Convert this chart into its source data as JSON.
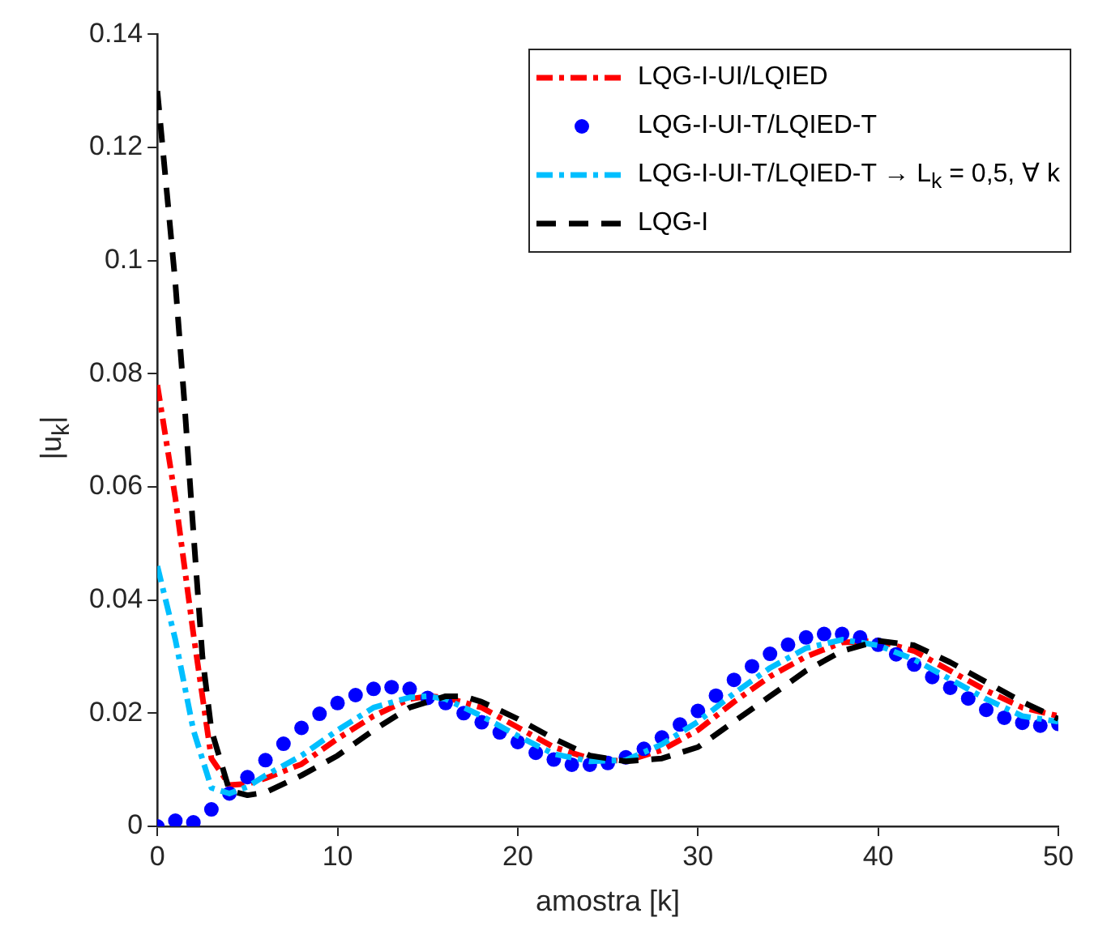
{
  "chart_data": {
    "type": "line",
    "xlabel": "amostra [k]",
    "ylabel": "|u$_{k}$|",
    "xlim": [
      0,
      50
    ],
    "xticks": [
      0,
      10,
      20,
      30,
      40,
      50
    ],
    "ylim": [
      0,
      0.14
    ],
    "yticks": [
      0,
      0.02,
      0.04,
      0.06,
      0.08,
      0.1,
      0.12,
      0.14
    ],
    "grid": false,
    "legend": "top right",
    "series": [
      {
        "name": "LQG-I-UI/LQIED",
        "line_style": "dashdot",
        "marker": "none",
        "color": "#ff0000",
        "x": [
          0,
          1,
          2,
          3,
          4,
          5,
          6,
          8,
          10,
          12,
          14,
          15,
          16,
          18,
          20,
          22,
          24,
          26,
          28,
          30,
          32,
          34,
          36,
          38,
          40,
          42,
          44,
          46,
          48,
          50
        ],
        "values": [
          0.078,
          0.058,
          0.034,
          0.012,
          0.0073,
          0.0075,
          0.0085,
          0.011,
          0.0155,
          0.0195,
          0.0225,
          0.023,
          0.0228,
          0.021,
          0.0175,
          0.014,
          0.012,
          0.0115,
          0.0135,
          0.017,
          0.022,
          0.0265,
          0.03,
          0.0325,
          0.0328,
          0.031,
          0.0275,
          0.024,
          0.021,
          0.0195
        ]
      },
      {
        "name": "LQG-I-UI-T/LQIED-T",
        "type": "scatter",
        "marker": "circle",
        "color": "#0000ff",
        "x": [
          0,
          1,
          2,
          3,
          4,
          5,
          6,
          7,
          8,
          9,
          10,
          11,
          12,
          13,
          14,
          15,
          16,
          17,
          18,
          19,
          20,
          21,
          22,
          23,
          24,
          25,
          26,
          27,
          28,
          29,
          30,
          31,
          32,
          33,
          34,
          35,
          36,
          37,
          38,
          39,
          40,
          41,
          42,
          43,
          44,
          45,
          46,
          47,
          48,
          49,
          50
        ],
        "values": [
          0,
          0.001,
          0.0007,
          0.003,
          0.0058,
          0.0087,
          0.0117,
          0.0146,
          0.0174,
          0.0199,
          0.0218,
          0.0232,
          0.0243,
          0.0246,
          0.0243,
          0.0227,
          0.0218,
          0.02,
          0.0184,
          0.0166,
          0.0149,
          0.013,
          0.0118,
          0.0109,
          0.0109,
          0.0112,
          0.0122,
          0.0137,
          0.0157,
          0.018,
          0.0204,
          0.0231,
          0.0259,
          0.0283,
          0.0305,
          0.0321,
          0.0334,
          0.034,
          0.034,
          0.0334,
          0.0321,
          0.0304,
          0.0286,
          0.0264,
          0.0245,
          0.0226,
          0.0206,
          0.0192,
          0.0183,
          0.0178,
          0.0181
        ]
      },
      {
        "name": "LQG-I-UI-T/LQIED-T → L$_{k}$ = 0,5, ∀ k",
        "line_style": "dashdot",
        "marker": "none",
        "color": "#00bfff",
        "x": [
          0,
          1,
          2,
          3,
          4,
          5,
          6,
          8,
          10,
          12,
          14,
          15,
          16,
          18,
          20,
          22,
          24,
          26,
          28,
          30,
          32,
          34,
          36,
          38,
          40,
          42,
          44,
          46,
          48,
          50
        ],
        "values": [
          0.046,
          0.033,
          0.017,
          0.0068,
          0.0058,
          0.007,
          0.009,
          0.0125,
          0.017,
          0.021,
          0.0228,
          0.023,
          0.0225,
          0.0195,
          0.016,
          0.0128,
          0.0115,
          0.0117,
          0.0145,
          0.0185,
          0.0235,
          0.028,
          0.0315,
          0.033,
          0.032,
          0.0295,
          0.026,
          0.0225,
          0.0195,
          0.0185
        ]
      },
      {
        "name": "LQG-I",
        "line_style": "dashed",
        "marker": "none",
        "color": "#000000",
        "x": [
          0,
          1,
          1.5,
          2,
          2.5,
          3,
          4,
          5,
          6,
          8,
          10,
          12,
          14,
          16,
          17,
          18,
          20,
          22,
          24,
          26,
          28,
          30,
          32,
          34,
          36,
          38,
          40,
          42,
          44,
          46,
          48,
          50
        ],
        "values": [
          0.13,
          0.096,
          0.075,
          0.052,
          0.03,
          0.017,
          0.0063,
          0.0055,
          0.006,
          0.009,
          0.0125,
          0.017,
          0.021,
          0.023,
          0.023,
          0.022,
          0.019,
          0.0155,
          0.0125,
          0.0115,
          0.012,
          0.014,
          0.0185,
          0.023,
          0.0275,
          0.031,
          0.0328,
          0.032,
          0.029,
          0.0255,
          0.022,
          0.019
        ]
      }
    ]
  }
}
